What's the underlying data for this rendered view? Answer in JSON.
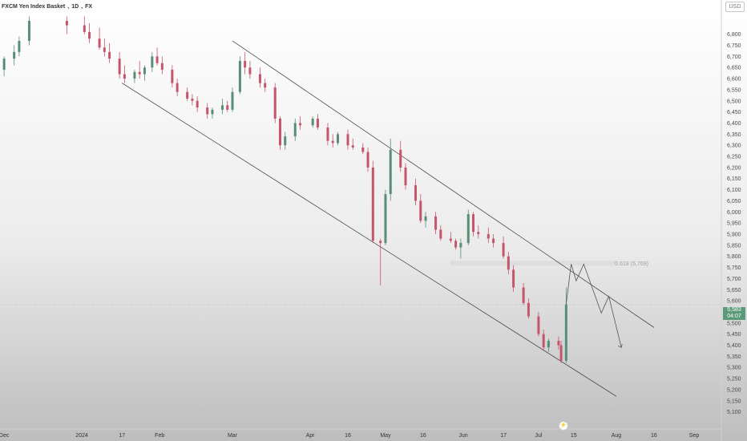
{
  "header": {
    "symbol": "FXCM Yen Index Basket",
    "interval": "1D",
    "exchange": "FX"
  },
  "currency_badge": "USD",
  "last_price": {
    "value": "5,583",
    "countdown": "04:07"
  },
  "fib_label": "0.618 (5,769)",
  "icons": {
    "replay": "lightning-icon"
  },
  "colors": {
    "up": "#5a8d76",
    "down": "#c4566c",
    "channel": "#4a4a4a",
    "projection": "#555555"
  },
  "chart_data": {
    "type": "candlestick",
    "title": "FXCM Yen Index Basket, 1D, FX",
    "ylim": [
      5050,
      6880
    ],
    "yticks": [
      6800,
      6750,
      6700,
      6650,
      6600,
      6550,
      6500,
      6450,
      6400,
      6350,
      6300,
      6250,
      6200,
      6150,
      6100,
      6050,
      6000,
      5950,
      5900,
      5850,
      5800,
      5750,
      5700,
      5650,
      5600,
      5550,
      5500,
      5450,
      5400,
      5350,
      5300,
      5250,
      5200,
      5150,
      5100
    ],
    "ytick_labels": [
      "6,800",
      "6,750",
      "6,700",
      "6,650",
      "6,600",
      "6,550",
      "6,500",
      "6,450",
      "6,400",
      "6,350",
      "6,300",
      "6,250",
      "6,200",
      "6,150",
      "6,100",
      "6,050",
      "6,000",
      "5,950",
      "5,900",
      "5,850",
      "5,800",
      "5,750",
      "5,700",
      "5,650",
      "5,600",
      "5,550",
      "5,500",
      "5,450",
      "5,400",
      "5,350",
      "5,300",
      "5,250",
      "5,200",
      "5,150",
      "5,100"
    ],
    "xticks": [
      {
        "label": "Dec",
        "date": "2023-12-01"
      },
      {
        "label": "2024",
        "date": "2024-01-01"
      },
      {
        "label": "17",
        "date": "2024-01-17"
      },
      {
        "label": "Feb",
        "date": "2024-02-01"
      },
      {
        "label": "Mar",
        "date": "2024-03-01"
      },
      {
        "label": "Apr",
        "date": "2024-04-01"
      },
      {
        "label": "16",
        "date": "2024-04-16"
      },
      {
        "label": "May",
        "date": "2024-05-01"
      },
      {
        "label": "16",
        "date": "2024-05-16"
      },
      {
        "label": "Jun",
        "date": "2024-06-01"
      },
      {
        "label": "17",
        "date": "2024-06-17"
      },
      {
        "label": "Jul",
        "date": "2024-07-01"
      },
      {
        "label": "15",
        "date": "2024-07-15"
      },
      {
        "label": "Aug",
        "date": "2024-08-01"
      },
      {
        "label": "16",
        "date": "2024-08-16"
      },
      {
        "label": "Sep",
        "date": "2024-09-01"
      }
    ],
    "last_price": 5583,
    "candles": [
      {
        "date": "2023-12-01",
        "o": 6640,
        "h": 6700,
        "l": 6610,
        "c": 6690
      },
      {
        "date": "2023-12-05",
        "o": 6690,
        "h": 6750,
        "l": 6660,
        "c": 6720
      },
      {
        "date": "2023-12-07",
        "o": 6720,
        "h": 6790,
        "l": 6700,
        "c": 6770
      },
      {
        "date": "2023-12-11",
        "o": 6770,
        "h": 6880,
        "l": 6750,
        "c": 6860
      },
      {
        "date": "2023-12-26",
        "o": 6860,
        "h": 6880,
        "l": 6800,
        "c": 6840
      },
      {
        "date": "2024-01-02",
        "o": 6840,
        "h": 6880,
        "l": 6800,
        "c": 6810
      },
      {
        "date": "2024-01-04",
        "o": 6810,
        "h": 6850,
        "l": 6760,
        "c": 6780
      },
      {
        "date": "2024-01-08",
        "o": 6780,
        "h": 6830,
        "l": 6730,
        "c": 6740
      },
      {
        "date": "2024-01-10",
        "o": 6740,
        "h": 6780,
        "l": 6700,
        "c": 6720
      },
      {
        "date": "2024-01-12",
        "o": 6720,
        "h": 6760,
        "l": 6670,
        "c": 6690
      },
      {
        "date": "2024-01-16",
        "o": 6690,
        "h": 6720,
        "l": 6600,
        "c": 6620
      },
      {
        "date": "2024-01-18",
        "o": 6620,
        "h": 6660,
        "l": 6580,
        "c": 6600
      },
      {
        "date": "2024-01-22",
        "o": 6600,
        "h": 6640,
        "l": 6580,
        "c": 6630
      },
      {
        "date": "2024-01-24",
        "o": 6630,
        "h": 6680,
        "l": 6600,
        "c": 6620
      },
      {
        "date": "2024-01-26",
        "o": 6620,
        "h": 6660,
        "l": 6590,
        "c": 6650
      },
      {
        "date": "2024-01-29",
        "o": 6650,
        "h": 6720,
        "l": 6630,
        "c": 6700
      },
      {
        "date": "2024-01-31",
        "o": 6700,
        "h": 6740,
        "l": 6660,
        "c": 6670
      },
      {
        "date": "2024-02-02",
        "o": 6670,
        "h": 6700,
        "l": 6620,
        "c": 6640
      },
      {
        "date": "2024-02-06",
        "o": 6640,
        "h": 6660,
        "l": 6560,
        "c": 6580
      },
      {
        "date": "2024-02-08",
        "o": 6580,
        "h": 6600,
        "l": 6520,
        "c": 6540
      },
      {
        "date": "2024-02-12",
        "o": 6540,
        "h": 6560,
        "l": 6500,
        "c": 6510
      },
      {
        "date": "2024-02-14",
        "o": 6510,
        "h": 6530,
        "l": 6480,
        "c": 6500
      },
      {
        "date": "2024-02-16",
        "o": 6500,
        "h": 6520,
        "l": 6450,
        "c": 6470
      },
      {
        "date": "2024-02-20",
        "o": 6470,
        "h": 6490,
        "l": 6420,
        "c": 6440
      },
      {
        "date": "2024-02-22",
        "o": 6440,
        "h": 6470,
        "l": 6420,
        "c": 6460
      },
      {
        "date": "2024-02-26",
        "o": 6460,
        "h": 6510,
        "l": 6440,
        "c": 6480
      },
      {
        "date": "2024-02-28",
        "o": 6480,
        "h": 6500,
        "l": 6450,
        "c": 6460
      },
      {
        "date": "2024-03-01",
        "o": 6460,
        "h": 6560,
        "l": 6450,
        "c": 6540
      },
      {
        "date": "2024-03-04",
        "o": 6540,
        "h": 6700,
        "l": 6530,
        "c": 6680
      },
      {
        "date": "2024-03-06",
        "o": 6680,
        "h": 6720,
        "l": 6620,
        "c": 6650
      },
      {
        "date": "2024-03-08",
        "o": 6650,
        "h": 6680,
        "l": 6600,
        "c": 6620
      },
      {
        "date": "2024-03-12",
        "o": 6620,
        "h": 6650,
        "l": 6560,
        "c": 6580
      },
      {
        "date": "2024-03-14",
        "o": 6580,
        "h": 6600,
        "l": 6540,
        "c": 6560
      },
      {
        "date": "2024-03-18",
        "o": 6560,
        "h": 6580,
        "l": 6400,
        "c": 6420
      },
      {
        "date": "2024-03-20",
        "o": 6420,
        "h": 6430,
        "l": 6280,
        "c": 6300
      },
      {
        "date": "2024-03-22",
        "o": 6300,
        "h": 6360,
        "l": 6280,
        "c": 6340
      },
      {
        "date": "2024-03-26",
        "o": 6340,
        "h": 6420,
        "l": 6320,
        "c": 6400
      },
      {
        "date": "2024-03-28",
        "o": 6400,
        "h": 6430,
        "l": 6370,
        "c": 6390
      },
      {
        "date": "2024-04-02",
        "o": 6390,
        "h": 6430,
        "l": 6380,
        "c": 6420
      },
      {
        "date": "2024-04-04",
        "o": 6420,
        "h": 6440,
        "l": 6370,
        "c": 6380
      },
      {
        "date": "2024-04-08",
        "o": 6380,
        "h": 6400,
        "l": 6300,
        "c": 6320
      },
      {
        "date": "2024-04-10",
        "o": 6320,
        "h": 6350,
        "l": 6290,
        "c": 6310
      },
      {
        "date": "2024-04-12",
        "o": 6310,
        "h": 6360,
        "l": 6300,
        "c": 6350
      },
      {
        "date": "2024-04-16",
        "o": 6350,
        "h": 6370,
        "l": 6280,
        "c": 6300
      },
      {
        "date": "2024-04-18",
        "o": 6300,
        "h": 6330,
        "l": 6280,
        "c": 6290
      },
      {
        "date": "2024-04-22",
        "o": 6290,
        "h": 6310,
        "l": 6260,
        "c": 6270
      },
      {
        "date": "2024-04-24",
        "o": 6270,
        "h": 6290,
        "l": 6180,
        "c": 6200
      },
      {
        "date": "2024-04-26",
        "o": 6200,
        "h": 6230,
        "l": 5860,
        "c": 5870
      },
      {
        "date": "2024-04-29",
        "o": 5870,
        "h": 5880,
        "l": 5670,
        "c": 5860
      },
      {
        "date": "2024-05-01",
        "o": 5860,
        "h": 6100,
        "l": 5850,
        "c": 6080
      },
      {
        "date": "2024-05-03",
        "o": 6080,
        "h": 6330,
        "l": 6050,
        "c": 6280
      },
      {
        "date": "2024-05-07",
        "o": 6280,
        "h": 6320,
        "l": 6180,
        "c": 6200
      },
      {
        "date": "2024-05-09",
        "o": 6200,
        "h": 6220,
        "l": 6100,
        "c": 6120
      },
      {
        "date": "2024-05-13",
        "o": 6120,
        "h": 6150,
        "l": 6030,
        "c": 6050
      },
      {
        "date": "2024-05-15",
        "o": 6050,
        "h": 6080,
        "l": 5950,
        "c": 5960
      },
      {
        "date": "2024-05-17",
        "o": 5960,
        "h": 6000,
        "l": 5930,
        "c": 5980
      },
      {
        "date": "2024-05-21",
        "o": 5980,
        "h": 6000,
        "l": 5900,
        "c": 5920
      },
      {
        "date": "2024-05-23",
        "o": 5920,
        "h": 5940,
        "l": 5870,
        "c": 5880
      },
      {
        "date": "2024-05-27",
        "o": 5880,
        "h": 5910,
        "l": 5860,
        "c": 5870
      },
      {
        "date": "2024-05-29",
        "o": 5870,
        "h": 5880,
        "l": 5830,
        "c": 5840
      },
      {
        "date": "2024-05-31",
        "o": 5840,
        "h": 5880,
        "l": 5790,
        "c": 5860
      },
      {
        "date": "2024-06-03",
        "o": 5860,
        "h": 6010,
        "l": 5850,
        "c": 5990
      },
      {
        "date": "2024-06-05",
        "o": 5990,
        "h": 6000,
        "l": 5890,
        "c": 5910
      },
      {
        "date": "2024-06-07",
        "o": 5910,
        "h": 5940,
        "l": 5880,
        "c": 5900
      },
      {
        "date": "2024-06-11",
        "o": 5900,
        "h": 5930,
        "l": 5860,
        "c": 5880
      },
      {
        "date": "2024-06-13",
        "o": 5880,
        "h": 5900,
        "l": 5840,
        "c": 5860
      },
      {
        "date": "2024-06-17",
        "o": 5860,
        "h": 5890,
        "l": 5790,
        "c": 5800
      },
      {
        "date": "2024-06-19",
        "o": 5800,
        "h": 5820,
        "l": 5720,
        "c": 5740
      },
      {
        "date": "2024-06-21",
        "o": 5740,
        "h": 5760,
        "l": 5640,
        "c": 5660
      },
      {
        "date": "2024-06-25",
        "o": 5660,
        "h": 5680,
        "l": 5580,
        "c": 5590
      },
      {
        "date": "2024-06-27",
        "o": 5590,
        "h": 5610,
        "l": 5520,
        "c": 5530
      },
      {
        "date": "2024-07-01",
        "o": 5530,
        "h": 5550,
        "l": 5440,
        "c": 5450
      },
      {
        "date": "2024-07-03",
        "o": 5450,
        "h": 5470,
        "l": 5380,
        "c": 5390
      },
      {
        "date": "2024-07-05",
        "o": 5390,
        "h": 5430,
        "l": 5370,
        "c": 5420
      },
      {
        "date": "2024-07-09",
        "o": 5420,
        "h": 5440,
        "l": 5380,
        "c": 5400
      },
      {
        "date": "2024-07-10",
        "o": 5400,
        "h": 5420,
        "l": 5320,
        "c": 5330
      },
      {
        "date": "2024-07-12",
        "o": 5330,
        "h": 5660,
        "l": 5320,
        "c": 5583
      }
    ],
    "channel": {
      "upper": [
        {
          "date": "2024-03-01",
          "value": 6770
        },
        {
          "date": "2024-08-16",
          "value": 5480
        }
      ],
      "lower": [
        {
          "date": "2024-01-17",
          "value": 6580
        },
        {
          "date": "2024-08-01",
          "value": 5170
        }
      ]
    },
    "fib_zone": {
      "from": "2024-05-27",
      "to": "2024-08-01",
      "value": 5769,
      "ratio": 0.618
    },
    "projection": [
      {
        "date": "2024-07-12",
        "value": 5583
      },
      {
        "date": "2024-07-14",
        "value": 5765
      },
      {
        "date": "2024-07-16",
        "value": 5690
      },
      {
        "date": "2024-07-19",
        "value": 5765
      },
      {
        "date": "2024-07-26",
        "value": 5545
      },
      {
        "date": "2024-07-29",
        "value": 5620
      },
      {
        "date": "2024-08-03",
        "value": 5390
      }
    ],
    "grid": false,
    "legend": "none"
  }
}
